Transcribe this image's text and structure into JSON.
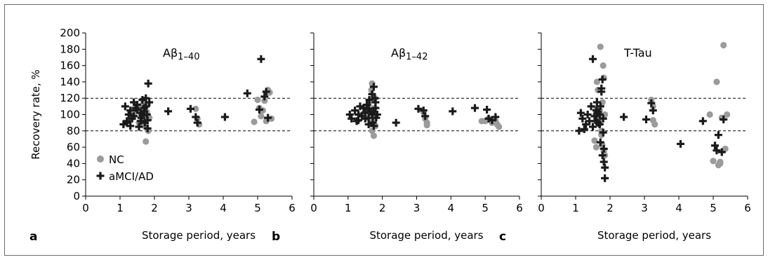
{
  "chart_data": [
    {
      "type": "scatter",
      "panel_letter": "a",
      "title": "Aβ1–40",
      "xlabel": "Storage period, years",
      "ylabel": "Recovery rate, %",
      "xlim": [
        0,
        6
      ],
      "ylim": [
        0,
        200
      ],
      "x_ticks": [
        "0",
        "1",
        "2",
        "3",
        "4",
        "5",
        "6"
      ],
      "y_ticks": [
        "0",
        "20",
        "40",
        "60",
        "80",
        "100",
        "120",
        "140",
        "160",
        "180",
        "200"
      ],
      "reference_lines": [
        80,
        120
      ],
      "legend": {
        "placement": "bottom-left",
        "entries": [
          "NC",
          "aMCI/AD"
        ]
      },
      "series": [
        {
          "name": "NC",
          "marker": "circle",
          "color": "#9b9b9b",
          "x": [
            1.3,
            1.4,
            1.5,
            1.55,
            1.6,
            1.62,
            1.65,
            1.68,
            1.7,
            1.72,
            1.75,
            1.75,
            1.78,
            1.8,
            1.82,
            1.85,
            1.7,
            1.65,
            1.6,
            3.2,
            3.25,
            3.3,
            4.9,
            5.0,
            5.1,
            5.2,
            5.25,
            5.3,
            5.35,
            5.4,
            5.05,
            5.15
          ],
          "y": [
            95,
            100,
            105,
            90,
            110,
            102,
            98,
            115,
            108,
            92,
            85,
            67,
            103,
            112,
            80,
            96,
            118,
            88,
            106,
            107,
            95,
            88,
            91,
            118,
            98,
            117,
            92,
            130,
            127,
            95,
            108,
            105
          ]
        },
        {
          "name": "aMCI/AD",
          "marker": "plus",
          "color": "#1a1a1a",
          "x": [
            1.1,
            1.15,
            1.2,
            1.25,
            1.3,
            1.35,
            1.4,
            1.45,
            1.5,
            1.55,
            1.6,
            1.62,
            1.65,
            1.7,
            1.72,
            1.75,
            1.78,
            1.8,
            1.82,
            1.85,
            1.4,
            1.3,
            1.2,
            1.5,
            1.6,
            1.75,
            1.8,
            2.4,
            3.05,
            3.2,
            3.25,
            4.05,
            4.7,
            5.05,
            5.1,
            5.2,
            5.25,
            5.3,
            1.7,
            1.65
          ],
          "y": [
            88,
            110,
            92,
            100,
            105,
            95,
            115,
            108,
            112,
            85,
            102,
            96,
            118,
            104,
            90,
            110,
            100,
            93,
            138,
            115,
            98,
            86,
            90,
            106,
            92,
            120,
            83,
            104,
            107,
            97,
            90,
            97,
            126,
            106,
            168,
            122,
            128,
            96,
            108,
            99
          ]
        }
      ]
    },
    {
      "type": "scatter",
      "panel_letter": "b",
      "title": "Aβ1–42",
      "xlabel": "Storage period, years",
      "xlim": [
        0,
        6
      ],
      "ylim": [
        0,
        200
      ],
      "x_ticks": [
        "0",
        "1",
        "2",
        "3",
        "4",
        "5",
        "6"
      ],
      "reference_lines": [
        80,
        120
      ],
      "series": [
        {
          "name": "NC",
          "marker": "circle",
          "color": "#9b9b9b",
          "x": [
            1.4,
            1.5,
            1.55,
            1.6,
            1.65,
            1.7,
            1.72,
            1.75,
            1.78,
            1.8,
            1.7,
            1.68,
            1.74,
            3.2,
            3.25,
            3.3,
            3.3,
            4.9,
            5.0,
            5.1,
            5.2,
            5.3,
            5.35,
            5.4,
            1.77,
            1.6
          ],
          "y": [
            100,
            108,
            96,
            112,
            104,
            138,
            92,
            74,
            120,
            86,
            80,
            130,
            100,
            103,
            95,
            90,
            87,
            92,
            92,
            95,
            90,
            92,
            88,
            85,
            108,
            115
          ]
        },
        {
          "name": "aMCI/AD",
          "marker": "plus",
          "color": "#1a1a1a",
          "x": [
            1.05,
            1.1,
            1.2,
            1.25,
            1.3,
            1.35,
            1.4,
            1.45,
            1.5,
            1.55,
            1.6,
            1.62,
            1.65,
            1.7,
            1.72,
            1.75,
            1.78,
            1.8,
            1.82,
            1.85,
            1.3,
            1.5,
            1.6,
            1.7,
            1.75,
            1.8,
            2.4,
            3.05,
            3.2,
            3.25,
            4.05,
            4.7,
            5.05,
            5.1,
            5.2,
            5.3,
            1.75,
            1.6
          ],
          "y": [
            100,
            95,
            105,
            92,
            100,
            110,
            98,
            108,
            102,
            112,
            96,
            118,
            104,
            100,
            90,
            134,
            120,
            108,
            96,
            100,
            93,
            95,
            107,
            125,
            86,
            115,
            90,
            107,
            105,
            98,
            104,
            108,
            106,
            95,
            93,
            97,
            103,
            88
          ]
        }
      ]
    },
    {
      "type": "scatter",
      "panel_letter": "c",
      "title": "T-Tau",
      "xlabel": "Storage period, years",
      "xlim": [
        0,
        6
      ],
      "ylim": [
        0,
        200
      ],
      "x_ticks": [
        "0",
        "1",
        "2",
        "3",
        "4",
        "5",
        "6"
      ],
      "reference_lines": [
        80,
        120
      ],
      "series": [
        {
          "name": "NC",
          "marker": "circle",
          "color": "#9b9b9b",
          "x": [
            1.55,
            1.6,
            1.62,
            1.65,
            1.68,
            1.7,
            1.72,
            1.75,
            1.75,
            1.78,
            1.8,
            1.82,
            1.85,
            1.85,
            1.7,
            1.65,
            1.6,
            1.58,
            1.77,
            3.2,
            3.25,
            3.25,
            3.3,
            4.9,
            5.0,
            5.1,
            5.15,
            5.2,
            5.25,
            5.3,
            5.35,
            5.4,
            5.2,
            1.82
          ],
          "y": [
            68,
            60,
            140,
            130,
            88,
            95,
            183,
            80,
            75,
            115,
            160,
            145,
            100,
            50,
            105,
            92,
            108,
            100,
            63,
            118,
            110,
            93,
            88,
            100,
            43,
            140,
            38,
            42,
            96,
            185,
            58,
            100,
            40,
            55
          ]
        },
        {
          "name": "aMCI/AD",
          "marker": "plus",
          "color": "#1a1a1a",
          "x": [
            1.1,
            1.15,
            1.2,
            1.25,
            1.3,
            1.35,
            1.4,
            1.45,
            1.5,
            1.5,
            1.55,
            1.6,
            1.62,
            1.65,
            1.7,
            1.72,
            1.75,
            1.78,
            1.8,
            1.82,
            1.85,
            1.85,
            1.75,
            1.8,
            1.78,
            1.82,
            1.72,
            1.7,
            1.65,
            1.6,
            2.4,
            3.05,
            3.2,
            3.25,
            4.05,
            4.7,
            5.05,
            5.1,
            5.15,
            5.25,
            5.3
          ],
          "y": [
            80,
            102,
            95,
            82,
            88,
            100,
            92,
            110,
            168,
            85,
            98,
            105,
            115,
            90,
            100,
            110,
            132,
            143,
            78,
            58,
            35,
            22,
            128,
            95,
            50,
            42,
            66,
            88,
            103,
            92,
            97,
            94,
            114,
            105,
            64,
            92,
            62,
            56,
            75,
            54,
            94
          ]
        }
      ]
    }
  ]
}
